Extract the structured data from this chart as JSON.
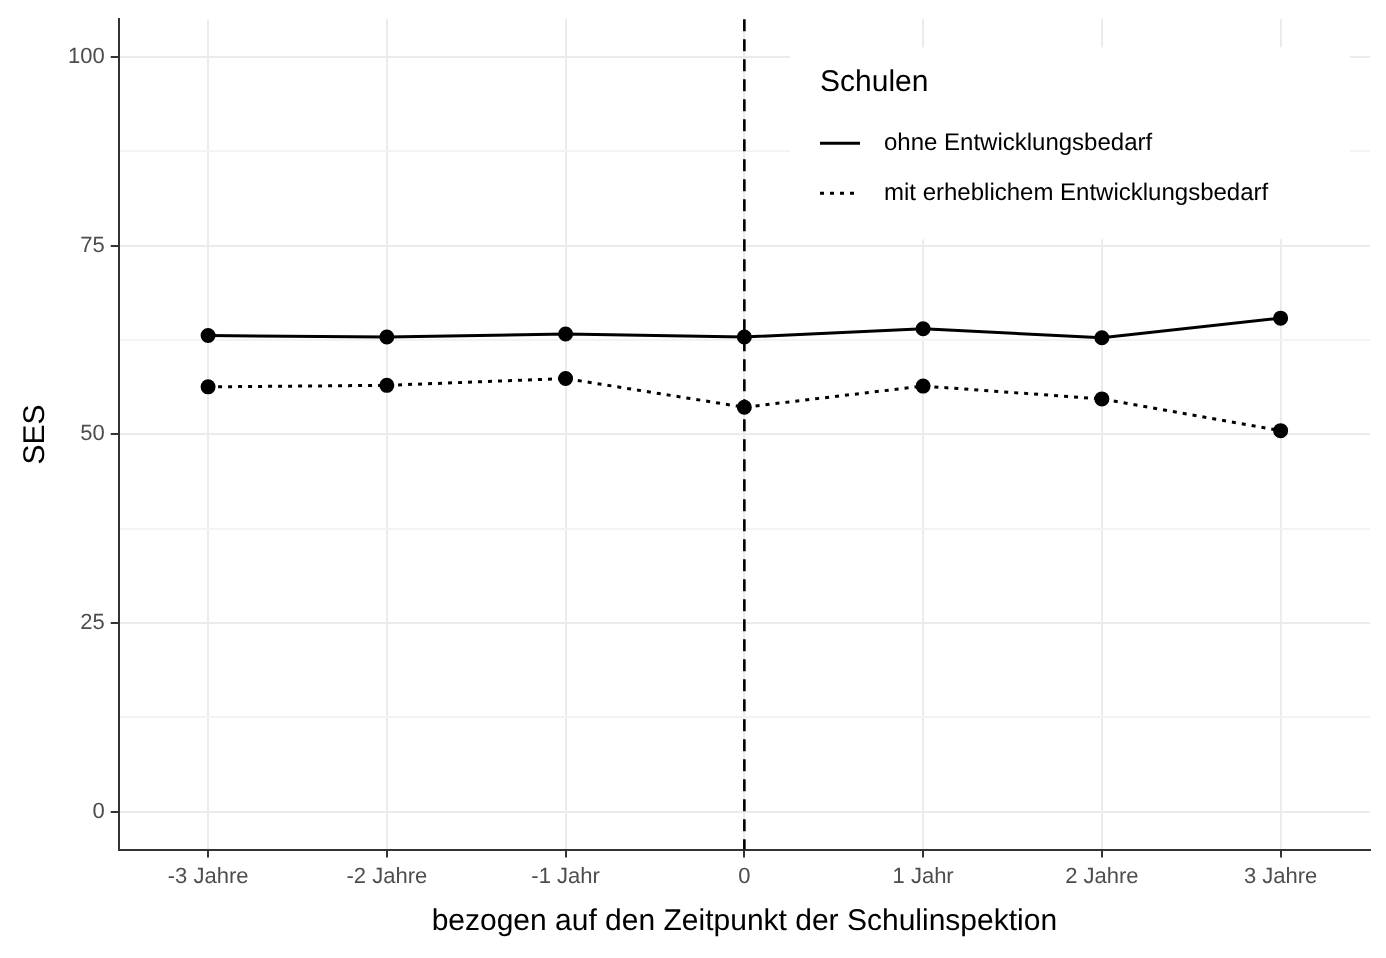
{
  "chart_data": {
    "type": "line",
    "xlabel": "bezogen auf den Zeitpunkt der Schulinspektion",
    "ylabel": "SES",
    "legend_title": "Schulen",
    "categories": [
      "-3 Jahre",
      "-2 Jahre",
      "-1 Jahr",
      "0",
      "1 Jahr",
      "2 Jahre",
      "3 Jahre"
    ],
    "series": [
      {
        "name": "ohne Entwicklungsbedarf",
        "color": "#000000",
        "line_style": "solid",
        "values": [
          63.1,
          62.9,
          63.3,
          62.9,
          64.0,
          62.8,
          65.4
        ]
      },
      {
        "name": "mit erheblichem Entwicklungsbedarf",
        "color": "#000000",
        "line_style": "dotted",
        "values": [
          56.3,
          56.5,
          57.4,
          53.6,
          56.4,
          54.7,
          50.5
        ]
      }
    ],
    "ylim": [
      -5,
      105
    ],
    "yticks": [
      0,
      {
        "value": 12.5,
        "label": null
      },
      25,
      {
        "value": 37.5,
        "label": null
      },
      50,
      {
        "value": 62.5,
        "label": null
      },
      75,
      {
        "value": 87.5,
        "label": null
      },
      100
    ],
    "ref_lines": [
      {
        "axis": "x",
        "value": "0",
        "line_style": "dashed",
        "color": "#000000"
      }
    ],
    "grid": true,
    "legend": "top right",
    "marker": "circle"
  }
}
